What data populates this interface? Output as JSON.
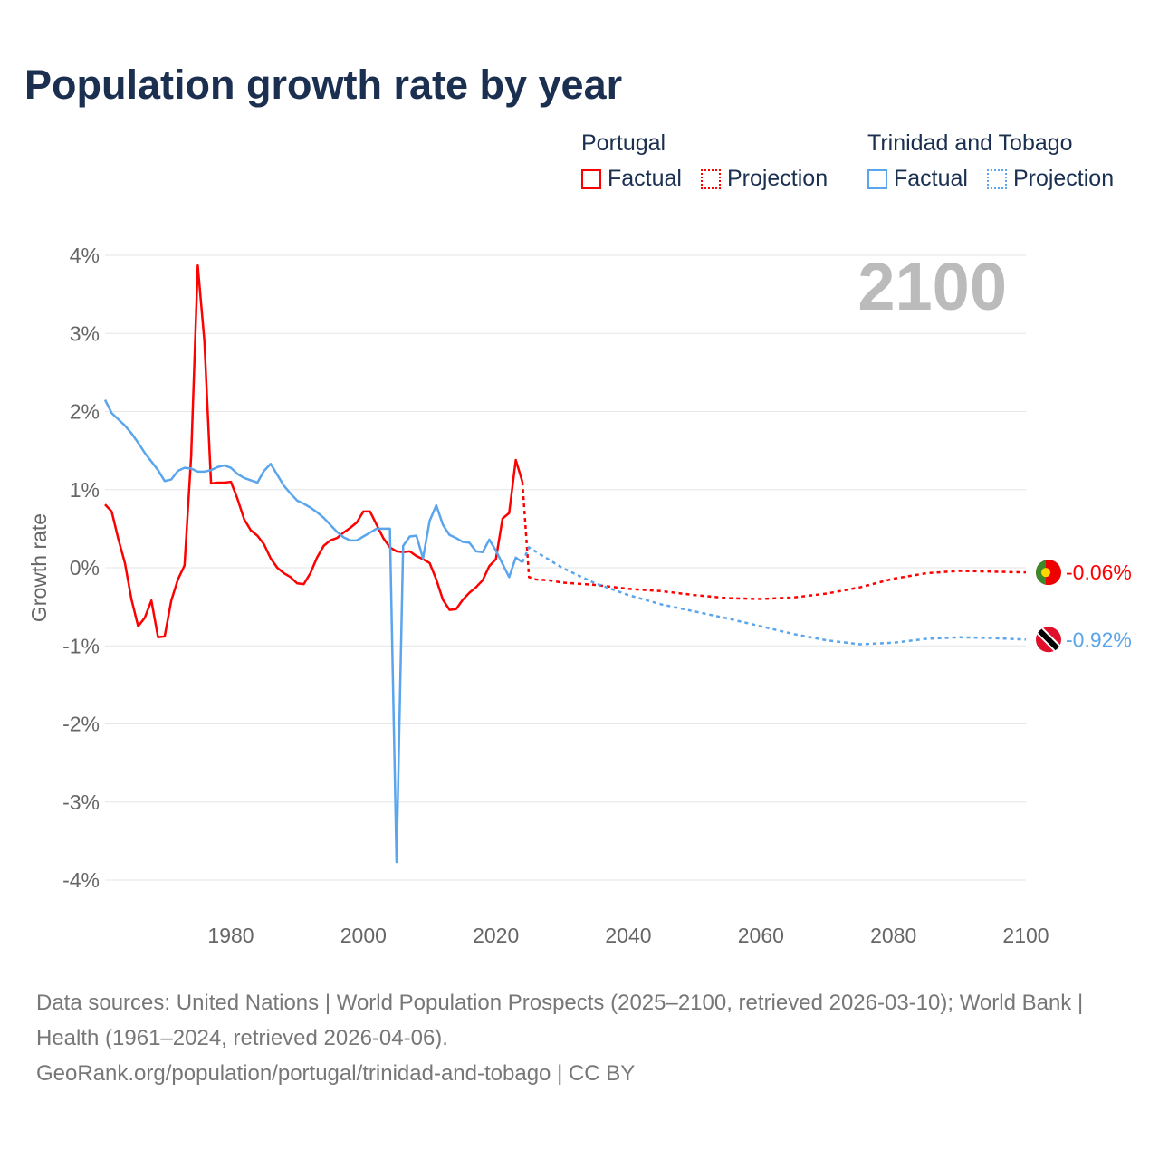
{
  "title": "Population growth rate by year",
  "legend": {
    "groups": [
      {
        "name": "Portugal",
        "factual": "Factual",
        "projection": "Projection",
        "color": "#ff0000"
      },
      {
        "name": "Trinidad and Tobago",
        "factual": "Factual",
        "projection": "Projection",
        "color": "#5aa5ec"
      }
    ]
  },
  "year_label": "2100",
  "footer": {
    "sources": "Data sources: United Nations | World Population Prospects (2025–2100, retrieved 2026-03-10); World Bank | Health (1961–2024, retrieved 2026-04-06).",
    "link": "GeoRank.org/population/portugal/trinidad-and-tobago | CC BY"
  },
  "chart_data": {
    "type": "line",
    "title": "Population growth rate by year",
    "xlabel": "",
    "ylabel": "Growth rate",
    "xlim": [
      1961,
      2100
    ],
    "ylim": [
      -4,
      4
    ],
    "x_ticks": [
      1980,
      2000,
      2020,
      2040,
      2060,
      2080,
      2100
    ],
    "y_ticks": [
      4,
      3,
      2,
      1,
      0,
      -1,
      -2,
      -3,
      -4
    ],
    "y_tick_labels": [
      "4%",
      "3%",
      "2%",
      "1%",
      "0%",
      "-1%",
      "-2%",
      "-3%",
      "-4%"
    ],
    "x_tick_labels": [
      "1980",
      "2000",
      "2020",
      "2040",
      "2060",
      "2080",
      "2100"
    ],
    "grid": true,
    "series": [
      {
        "name": "Portugal",
        "color": "#ff0000",
        "end_label": "-0.06%",
        "factual": {
          "x": [
            1961,
            1962,
            1963,
            1964,
            1965,
            1966,
            1967,
            1968,
            1969,
            1970,
            1971,
            1972,
            1973,
            1974,
            1975,
            1976,
            1977,
            1978,
            1979,
            1980,
            1981,
            1982,
            1983,
            1984,
            1985,
            1986,
            1987,
            1988,
            1989,
            1990,
            1991,
            1992,
            1993,
            1994,
            1995,
            1996,
            1997,
            1998,
            1999,
            2000,
            2001,
            2002,
            2003,
            2004,
            2005,
            2006,
            2007,
            2008,
            2009,
            2010,
            2011,
            2012,
            2013,
            2014,
            2015,
            2016,
            2017,
            2018,
            2019,
            2020,
            2021,
            2022,
            2023,
            2024
          ],
          "y": [
            0.81,
            0.72,
            0.37,
            0.06,
            -0.41,
            -0.75,
            -0.64,
            -0.42,
            -0.89,
            -0.88,
            -0.42,
            -0.15,
            0.03,
            1.43,
            3.87,
            2.9,
            1.08,
            1.09,
            1.09,
            1.1,
            0.88,
            0.62,
            0.48,
            0.41,
            0.3,
            0.12,
            0.0,
            -0.07,
            -0.12,
            -0.2,
            -0.21,
            -0.07,
            0.13,
            0.28,
            0.35,
            0.38,
            0.45,
            0.51,
            0.58,
            0.72,
            0.72,
            0.55,
            0.38,
            0.26,
            0.21,
            0.2,
            0.21,
            0.15,
            0.11,
            0.06,
            -0.15,
            -0.41,
            -0.54,
            -0.53,
            -0.41,
            -0.32,
            -0.25,
            -0.16,
            0.02,
            0.11,
            0.63,
            0.7,
            1.38,
            1.1
          ]
        },
        "projection": {
          "x": [
            2024,
            2025,
            2026,
            2028,
            2030,
            2035,
            2040,
            2045,
            2050,
            2055,
            2060,
            2065,
            2070,
            2075,
            2080,
            2085,
            2090,
            2095,
            2100
          ],
          "y": [
            1.1,
            -0.12,
            -0.15,
            -0.16,
            -0.19,
            -0.22,
            -0.27,
            -0.3,
            -0.35,
            -0.39,
            -0.4,
            -0.38,
            -0.33,
            -0.25,
            -0.14,
            -0.07,
            -0.04,
            -0.05,
            -0.06
          ]
        }
      },
      {
        "name": "Trinidad and Tobago",
        "color": "#5aa5ec",
        "end_label": "-0.92%",
        "factual": {
          "x": [
            1961,
            1962,
            1963,
            1964,
            1965,
            1966,
            1967,
            1968,
            1969,
            1970,
            1971,
            1972,
            1973,
            1974,
            1975,
            1976,
            1977,
            1978,
            1979,
            1980,
            1981,
            1982,
            1983,
            1984,
            1985,
            1986,
            1987,
            1988,
            1989,
            1990,
            1991,
            1992,
            1993,
            1994,
            1995,
            1996,
            1997,
            1998,
            1999,
            2000,
            2001,
            2002,
            2003,
            2004,
            2005,
            2006,
            2007,
            2008,
            2009,
            2010,
            2011,
            2012,
            2013,
            2014,
            2015,
            2016,
            2017,
            2018,
            2019,
            2020,
            2021,
            2022,
            2023,
            2024
          ],
          "y": [
            2.15,
            1.98,
            1.9,
            1.82,
            1.72,
            1.6,
            1.47,
            1.36,
            1.25,
            1.11,
            1.13,
            1.24,
            1.28,
            1.27,
            1.23,
            1.23,
            1.25,
            1.29,
            1.31,
            1.28,
            1.2,
            1.15,
            1.12,
            1.09,
            1.24,
            1.33,
            1.19,
            1.05,
            0.95,
            0.86,
            0.82,
            0.77,
            0.71,
            0.64,
            0.55,
            0.46,
            0.39,
            0.35,
            0.35,
            0.4,
            0.45,
            0.5,
            0.5,
            0.5,
            -3.77,
            0.28,
            0.4,
            0.41,
            0.12,
            0.6,
            0.8,
            0.55,
            0.42,
            0.38,
            0.33,
            0.32,
            0.21,
            0.2,
            0.36,
            0.22,
            0.05,
            -0.12,
            0.13,
            0.07
          ]
        },
        "projection": {
          "x": [
            2024,
            2025,
            2030,
            2035,
            2040,
            2045,
            2050,
            2055,
            2060,
            2065,
            2070,
            2075,
            2080,
            2085,
            2090,
            2095,
            2100
          ],
          "y": [
            0.07,
            0.26,
            0.0,
            -0.2,
            -0.35,
            -0.47,
            -0.56,
            -0.65,
            -0.75,
            -0.85,
            -0.93,
            -0.98,
            -0.96,
            -0.91,
            -0.89,
            -0.9,
            -0.92
          ]
        }
      }
    ]
  }
}
